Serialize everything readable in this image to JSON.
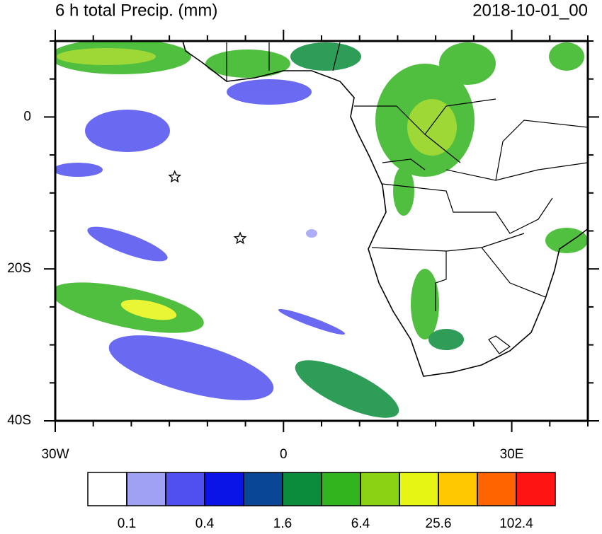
{
  "chart_data": {
    "type": "map",
    "title": "6 h total Precip. (mm)",
    "date": "2018-10-01_00",
    "xlim": [
      -30,
      40
    ],
    "ylim": [
      -40,
      10
    ],
    "xticks": [
      {
        "value": -30,
        "label": "30W"
      },
      0,
      {
        "value": 30,
        "label": "30E"
      }
    ],
    "yticks": [
      0,
      {
        "value": -20,
        "label": "20S"
      },
      {
        "value": -40,
        "label": "40S"
      }
    ],
    "xminorticks": [
      -25,
      -20,
      -15,
      -10,
      -5,
      5,
      10,
      15,
      20,
      25,
      35,
      40
    ],
    "yminorticks": [
      5,
      10,
      -5,
      -10,
      -15,
      -25,
      -30,
      -35
    ],
    "markers": [
      {
        "lon": -14.3,
        "lat": -7.9
      },
      {
        "lon": -5.7,
        "lat": -16.0
      }
    ],
    "colorbar": {
      "colors": [
        "#ffffff",
        "#a0a0f5",
        "#5050f0",
        "#0a14e6",
        "#0a4696",
        "#0a8c3c",
        "#32b41e",
        "#8cd214",
        "#e6f514",
        "#ffc800",
        "#ff6400",
        "#ff1414"
      ],
      "levels": [
        0.1,
        0.2,
        0.4,
        0.8,
        1.6,
        3.2,
        6.4,
        12.8,
        25.6,
        51.2,
        102.4
      ]
    }
  }
}
